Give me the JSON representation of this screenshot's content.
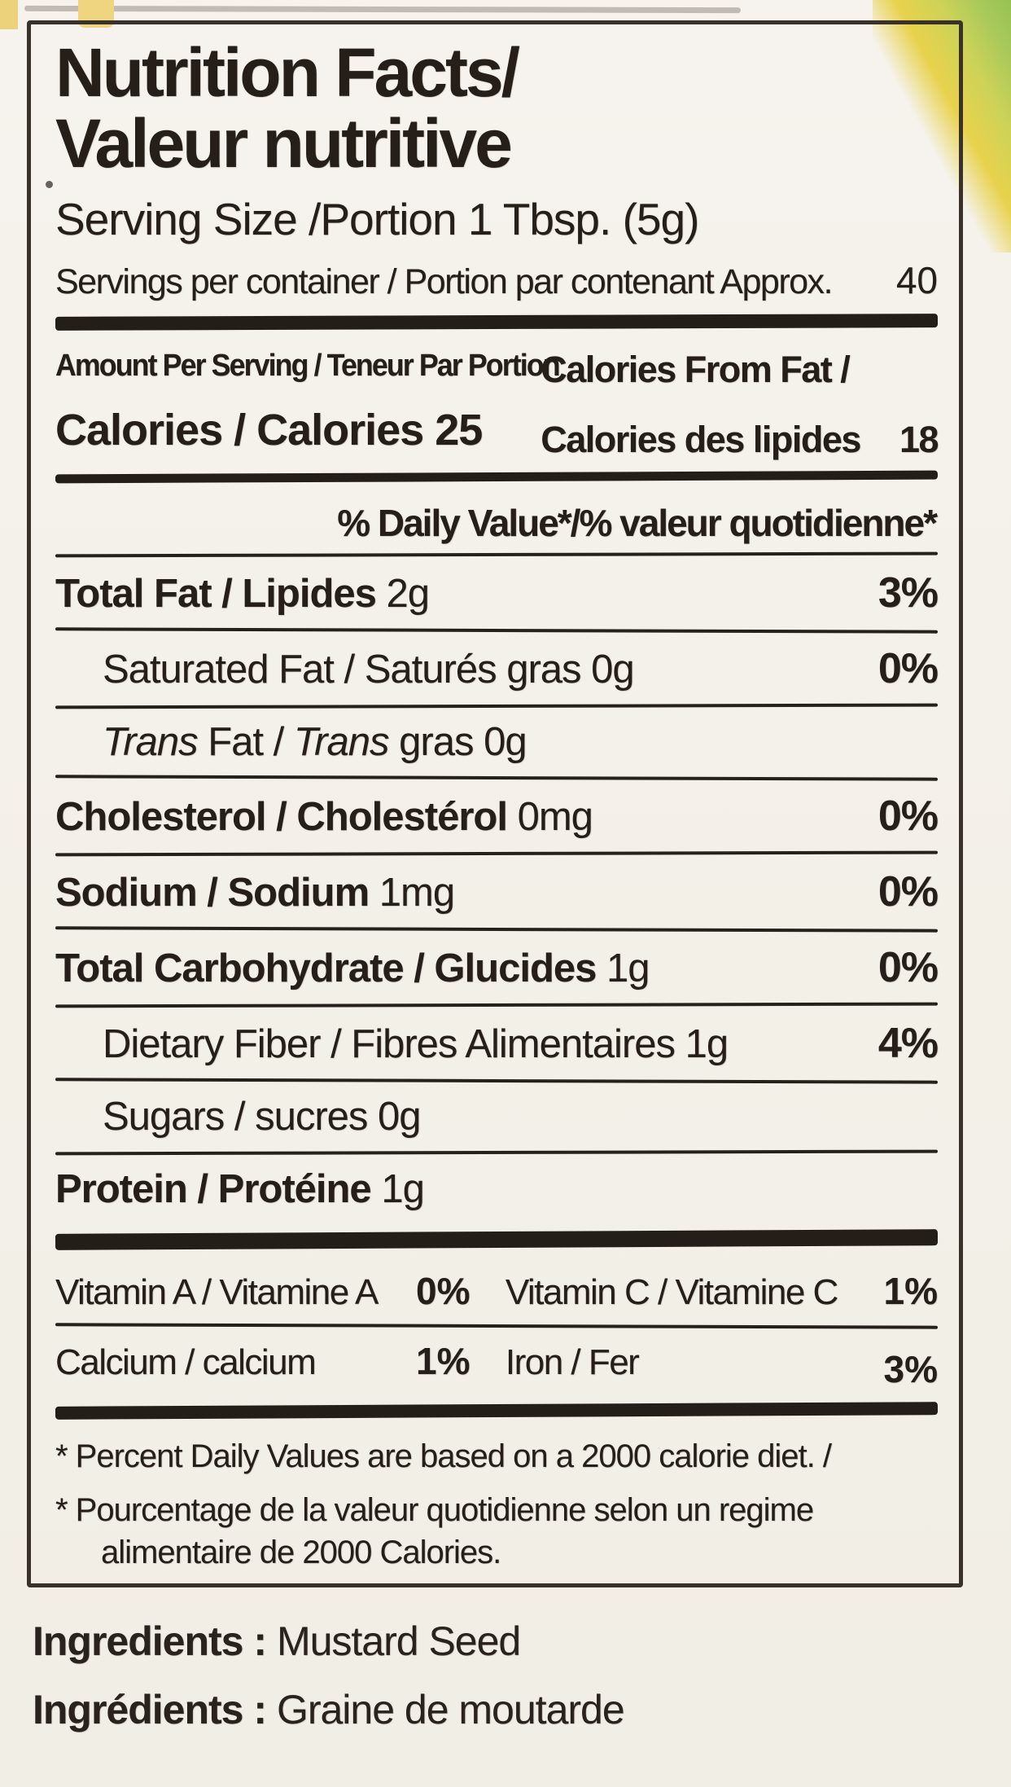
{
  "photo": {
    "background_hex": "#f3f0e8",
    "ink_hex": "#261f19",
    "corner_accent_hexes": [
      "#e8d24c",
      "#a9c95b"
    ]
  },
  "label": {
    "title_line1": "Nutrition Facts/",
    "title_line2": "Valeur nutritive",
    "serving_size_line": "Serving Size /Portion 1 Tbsp. (5g)",
    "servings_line": "Servings per container / Portion par contenant Approx.",
    "servings_value": "40",
    "amount_per_serving": "Amount Per Serving / Teneur Par Portion",
    "calories_label": "Calories / Calories",
    "calories_value": "25",
    "calories_from_fat_line1": "Calories From Fat /",
    "calories_from_fat_label": "Calories des lipides",
    "calories_from_fat_value": "18",
    "daily_value_header": "% Daily Value*/% valeur quotidienne*",
    "rows": [
      {
        "name": "Total Fat / Lipides",
        "amount": "2g",
        "dv": "3%"
      },
      {
        "name": "Saturated Fat / Saturés gras",
        "amount": "0g",
        "dv": "0%"
      },
      {
        "name_start_italic": "Trans",
        "name_mid": " Fat / ",
        "name_mid_italic": "Trans",
        "name_end": " gras",
        "amount": "0g",
        "dv": ""
      },
      {
        "name": "Cholesterol / Cholestérol",
        "amount": "0mg",
        "dv": "0%"
      },
      {
        "name": "Sodium / Sodium",
        "amount": "1mg",
        "dv": "0%"
      },
      {
        "name": "Total Carbohydrate / Glucides",
        "amount": "1g",
        "dv": "0%"
      },
      {
        "name": "Dietary Fiber / Fibres Alimentaires",
        "amount": "1g",
        "dv": "4%"
      },
      {
        "name": "Sugars / sucres",
        "amount": "0g",
        "dv": ""
      },
      {
        "name": "Protein / Protéine",
        "amount": "1g",
        "dv": ""
      }
    ],
    "vitamins": {
      "row1": {
        "left_label": "Vitamin A / Vitamine A",
        "left_value": "0%",
        "right_label": "Vitamin C / Vitamine C",
        "right_value": "1%"
      },
      "row2": {
        "left_label": "Calcium / calcium",
        "left_value": "1%",
        "right_label": "Iron / Fer",
        "right_value": "3%"
      }
    },
    "footnotes": [
      "* Percent Daily Values are based on a 2000 calorie diet. /",
      "* Pourcentage de la valeur quotidienne selon un regime alimentaire de 2000 Calories."
    ]
  },
  "ingredients": [
    {
      "label": "Ingredients :",
      "value": "Mustard Seed"
    },
    {
      "label": "Ingrédients :",
      "value": "Graine de moutarde"
    }
  ]
}
